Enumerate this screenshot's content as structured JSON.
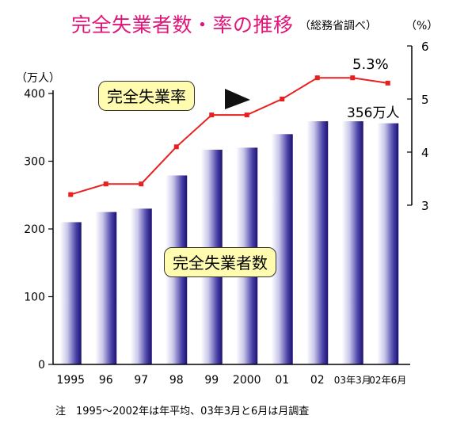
{
  "chart_data": {
    "type": "bar",
    "title": "完全失業者数・率の推移",
    "source": "（総務省調べ）",
    "left_axis": {
      "unit": "（万人）",
      "ylim": [
        0,
        400
      ],
      "ticks": [
        "0",
        "100",
        "200",
        "300",
        "400"
      ]
    },
    "right_axis": {
      "unit": "（%）",
      "ylim": [
        3,
        6
      ],
      "ticks": [
        "3",
        "4",
        "5",
        "6"
      ]
    },
    "categories": [
      "1995",
      "96",
      "97",
      "98",
      "99",
      "2000",
      "01",
      "02",
      "03年3月",
      "02年6月"
    ],
    "series": [
      {
        "name": "完全失業者数",
        "type": "bar",
        "axis": "left",
        "values": [
          210,
          225,
          230,
          279,
          317,
          320,
          340,
          359,
          359,
          356
        ]
      },
      {
        "name": "完全失業率",
        "type": "line",
        "axis": "right",
        "values": [
          3.2,
          3.4,
          3.4,
          4.1,
          4.7,
          4.7,
          5.0,
          5.4,
          5.4,
          5.3
        ]
      }
    ],
    "annotations": {
      "last_rate": "5.3%",
      "last_count": "356万人"
    },
    "note": "注　1995～2002年は年平均、03年3月と6月は月調査",
    "colors": {
      "title": "#e0157a",
      "line": "#e82020",
      "bar_dark": "#1a1070",
      "bar_light": "#ffffff",
      "label_box": "#fffcb0"
    }
  }
}
